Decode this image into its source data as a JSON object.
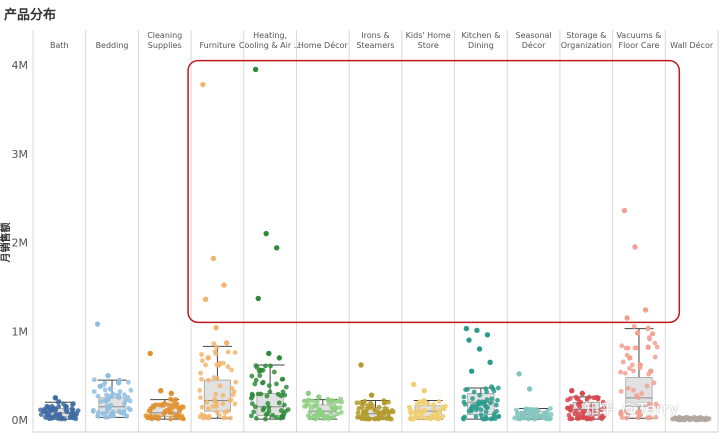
{
  "page": {
    "title": "产品分布",
    "watermark": "知乎 @Terry"
  },
  "chart_data": {
    "type": "scatter",
    "title": "产品分布",
    "xlabel": "",
    "ylabel": "月销售额",
    "ylim": [
      0,
      4000000
    ],
    "yticks": [
      0,
      1000000,
      2000000,
      3000000,
      4000000
    ],
    "ytick_labels": [
      "0M",
      "1M",
      "2M",
      "3M",
      "4M"
    ],
    "grid": false,
    "highlight_box": {
      "color": "#c0191f",
      "from_category": "Furniture",
      "to_category": "Vacuums & Floor Care",
      "y_range": [
        1100000,
        4050000
      ]
    },
    "categories": [
      {
        "name": "Bath",
        "label_lines": [
          "Bath"
        ],
        "color": "#3e6ba2",
        "box": {
          "q1": 40000,
          "median": 80000,
          "q3": 130000,
          "low": 10000,
          "high": 200000
        },
        "points": [
          100000,
          250000,
          150000,
          60000
        ]
      },
      {
        "name": "Bedding",
        "label_lines": [
          "Bedding"
        ],
        "color": "#8fbfe0",
        "box": {
          "q1": 80000,
          "median": 150000,
          "q3": 250000,
          "low": 30000,
          "high": 450000
        },
        "points": [
          1080000,
          500000,
          420000,
          380000,
          350000
        ]
      },
      {
        "name": "Cleaning Supplies",
        "label_lines": [
          "Cleaning",
          "Supplies"
        ],
        "color": "#e0922f",
        "box": {
          "q1": 40000,
          "median": 80000,
          "q3": 180000,
          "low": 10000,
          "high": 230000
        },
        "points": [
          750000,
          330000,
          300000
        ]
      },
      {
        "name": "Furniture",
        "label_lines": [
          "Furniture"
        ],
        "color": "#f3b56e",
        "box": {
          "q1": 100000,
          "median": 220000,
          "q3": 450000,
          "low": 20000,
          "high": 830000
        },
        "points": [
          3780000,
          1820000,
          1520000,
          1360000,
          1040000,
          870000,
          700000,
          620000
        ]
      },
      {
        "name": "Heating, Cooling & Air Quality",
        "label_lines": [
          "Heating,",
          "Cooling & Air ..."
        ],
        "color": "#2e8b3a",
        "box": {
          "q1": 50000,
          "median": 150000,
          "q3": 300000,
          "low": 10000,
          "high": 620000
        },
        "points": [
          3950000,
          2100000,
          1940000,
          1370000,
          750000,
          700000,
          560000
        ]
      },
      {
        "name": "Home Décor",
        "label_lines": [
          "Home Décor"
        ],
        "color": "#8fd083",
        "box": {
          "q1": 40000,
          "median": 100000,
          "q3": 170000,
          "low": 10000,
          "high": 230000
        },
        "points": [
          300000,
          260000
        ]
      },
      {
        "name": "Irons & Steamers",
        "label_lines": [
          "Irons &",
          "Steamers"
        ],
        "color": "#b49a26",
        "box": {
          "q1": 30000,
          "median": 70000,
          "q3": 140000,
          "low": 10000,
          "high": 220000
        },
        "points": [
          620000,
          280000
        ]
      },
      {
        "name": "Kids' Home Store",
        "label_lines": [
          "Kids' Home",
          "Store"
        ],
        "color": "#f1cf70",
        "box": {
          "q1": 40000,
          "median": 100000,
          "q3": 160000,
          "low": 10000,
          "high": 220000
        },
        "points": [
          400000,
          330000
        ]
      },
      {
        "name": "Kitchen & Dining",
        "label_lines": [
          "Kitchen &",
          "Dining"
        ],
        "color": "#2a9a8c",
        "box": {
          "q1": 60000,
          "median": 200000,
          "q3": 300000,
          "low": 10000,
          "high": 360000
        },
        "points": [
          1030000,
          1010000,
          960000,
          900000,
          800000,
          650000,
          550000
        ]
      },
      {
        "name": "Seasonal Décor",
        "label_lines": [
          "Seasonal",
          "Décor"
        ],
        "color": "#84c7c0",
        "box": {
          "q1": 20000,
          "median": 60000,
          "q3": 100000,
          "low": 10000,
          "high": 130000
        },
        "points": [
          520000,
          350000
        ]
      },
      {
        "name": "Storage & Organization",
        "label_lines": [
          "Storage &",
          "Organization"
        ],
        "color": "#d9484e",
        "box": {
          "q1": 50000,
          "median": 120000,
          "q3": 200000,
          "low": 10000,
          "high": 260000
        },
        "points": [
          330000,
          300000
        ]
      },
      {
        "name": "Vacuums & Floor Care",
        "label_lines": [
          "Vacuums &",
          "Floor Care"
        ],
        "color": "#f2a090",
        "box": {
          "q1": 150000,
          "median": 250000,
          "q3": 480000,
          "low": 20000,
          "high": 1030000
        },
        "points": [
          2360000,
          1950000,
          1240000,
          1150000,
          980000,
          820000,
          700000,
          620000,
          550000
        ]
      },
      {
        "name": "Wall Décor",
        "label_lines": [
          "Wall Décor"
        ],
        "color": "#b0a8a0",
        "box": {
          "q1": 5000,
          "median": 10000,
          "q3": 20000,
          "low": 0,
          "high": 30000
        },
        "points": []
      }
    ]
  }
}
